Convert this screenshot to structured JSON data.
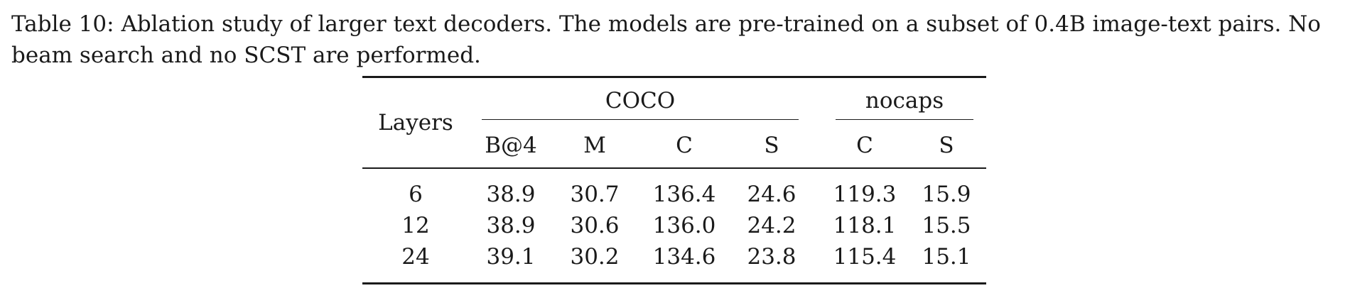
{
  "caption": "Table 10: Ablation study of larger text decoders. The models are pre-trained on a subset of 0.4B image-text pairs. No beam search and no SCST are performed.",
  "table": {
    "row_header": "Layers",
    "groups": [
      {
        "name": "COCO",
        "columns": [
          "B@4",
          "M",
          "C",
          "S"
        ]
      },
      {
        "name": "nocaps",
        "columns": [
          "C",
          "S"
        ]
      }
    ],
    "rows": [
      {
        "layers": "6",
        "values": [
          "38.9",
          "30.7",
          "136.4",
          "24.6",
          "119.3",
          "15.9"
        ]
      },
      {
        "layers": "12",
        "values": [
          "38.9",
          "30.6",
          "136.0",
          "24.2",
          "118.1",
          "15.5"
        ]
      },
      {
        "layers": "24",
        "values": [
          "39.1",
          "30.2",
          "134.6",
          "23.8",
          "115.4",
          "15.1"
        ]
      }
    ]
  }
}
